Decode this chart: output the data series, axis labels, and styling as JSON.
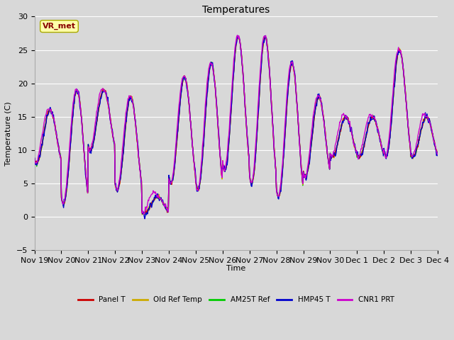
{
  "title": "Temperatures",
  "ylabel": "Temperature (C)",
  "xlabel": "Time",
  "ylim": [
    -5,
    30
  ],
  "yticks": [
    -5,
    0,
    5,
    10,
    15,
    20,
    25,
    30
  ],
  "series_colors": {
    "Panel T": "#cc0000",
    "Old Ref Temp": "#ccaa00",
    "AM25T Ref": "#00cc00",
    "HMP45 T": "#0000cc",
    "CNR1 PRT": "#cc00cc"
  },
  "annotation_text": "VR_met",
  "annotation_box_color": "#ffffaa",
  "annotation_text_color": "#880000",
  "background_color": "#d8d8d8",
  "grid_color": "#ffffff",
  "x_tick_labels": [
    "Nov 19",
    "Nov 20",
    "Nov 21",
    "Nov 22",
    "Nov 23",
    "Nov 24",
    "Nov 25",
    "Nov 26",
    "Nov 27",
    "Nov 28",
    "Nov 29",
    "Nov 30",
    "Dec 1",
    "Dec 2",
    "Dec 3",
    "Dec 4"
  ],
  "linewidth": 1.0,
  "figwidth": 6.4,
  "figheight": 4.8,
  "dpi": 100
}
